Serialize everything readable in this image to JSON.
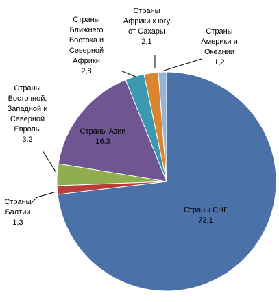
{
  "chart_data": {
    "type": "pie",
    "title": "",
    "start_angle_deg": 0,
    "direction": "clockwise",
    "slices": [
      {
        "label_lines": [
          "Страны СНГ"
        ],
        "value": 73.1,
        "value_text": "73,1",
        "color": "#4a71a8"
      },
      {
        "label_lines": [
          "Страны",
          "Балтии"
        ],
        "value": 1.3,
        "value_text": "1,3",
        "color": "#b93e3a"
      },
      {
        "label_lines": [
          "Страны",
          "Восточной,",
          "Западной и",
          "Северной",
          "Европы"
        ],
        "value": 3.2,
        "value_text": "3,2",
        "color": "#90ae50"
      },
      {
        "label_lines": [
          "Страны Азии"
        ],
        "value": 16.3,
        "value_text": "16,3",
        "color": "#6f5591"
      },
      {
        "label_lines": [
          "Страны",
          "Ближнего",
          "Востока и",
          "Северной",
          "Африки"
        ],
        "value": 2.8,
        "value_text": "2,8",
        "color": "#3a98b0"
      },
      {
        "label_lines": [
          "Страны",
          "Африки к югу",
          "от Сахары"
        ],
        "value": 2.1,
        "value_text": "2,1",
        "color": "#dc8531"
      },
      {
        "label_lines": [
          "Страны",
          "Америки и",
          "Океании"
        ],
        "value": 1.2,
        "value_text": "1,2",
        "color": "#97b3d8"
      }
    ]
  }
}
